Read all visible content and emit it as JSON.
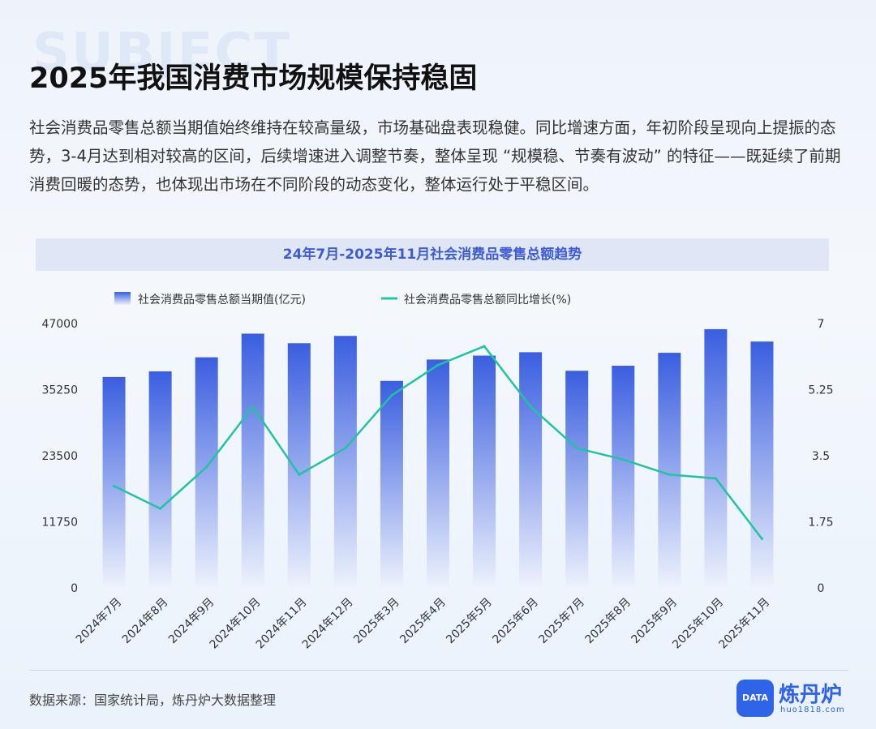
{
  "background_word": "SUBJECT",
  "title": "2025年我国消费市场规模保持稳固",
  "intro": "社会消费品零售总额当期值始终维持在较高量级，市场基础盘表现稳健。同比增速方面，年初阶段呈现向上提振的态势，3-4月达到相对较高的区间，后续增速进入调整节奏，整体呈现 “规模稳、节奏有波动” 的特征——既延续了前期消费回暖的态势，也体现出市场在不同阶段的动态变化，整体运行处于平稳区间。",
  "chart_data": {
    "type": "bar",
    "title": "24年7月-2025年11月社会消费品零售总额趋势",
    "categories": [
      "2024年7月",
      "2024年8月",
      "2024年9月",
      "2024年10月",
      "2024年11月",
      "2024年12月",
      "2025年3月",
      "2025年4月",
      "2025年5月",
      "2025年6月",
      "2025年7月",
      "2025年8月",
      "2025年9月",
      "2025年10月",
      "2025年11月"
    ],
    "series": [
      {
        "name": "社会消费品零售总额当期值(亿元)",
        "type": "bar",
        "axis": "left",
        "values": [
          37500,
          38500,
          41000,
          45200,
          43500,
          44800,
          36800,
          40600,
          41300,
          41900,
          38600,
          39500,
          41800,
          46000,
          43800
        ]
      },
      {
        "name": "社会消费品零售总额同比增长(%)",
        "type": "line",
        "axis": "right",
        "values": [
          2.7,
          2.1,
          3.2,
          4.8,
          3.0,
          3.7,
          5.1,
          5.9,
          6.4,
          4.8,
          3.7,
          3.4,
          3.0,
          2.9,
          1.3
        ]
      }
    ],
    "y_left": {
      "min": 0,
      "max": 47000,
      "ticks": [
        "0",
        "11750",
        "23500",
        "35250",
        "47000"
      ]
    },
    "y_right": {
      "min": 0,
      "max": 7,
      "ticks": [
        "0",
        "1.75",
        "3.5",
        "5.25",
        "7"
      ]
    },
    "legend_position": "top-left",
    "grid": false,
    "colors": {
      "bar_top": "#3a5ee0",
      "bar_bottom": "#eef2fc",
      "line": "#22c3a2"
    }
  },
  "source": "数据来源：国家统计局，炼丹炉大数据整理",
  "logo": {
    "badge": "DATA",
    "name": "炼丹炉",
    "url": "huo1818.com"
  }
}
